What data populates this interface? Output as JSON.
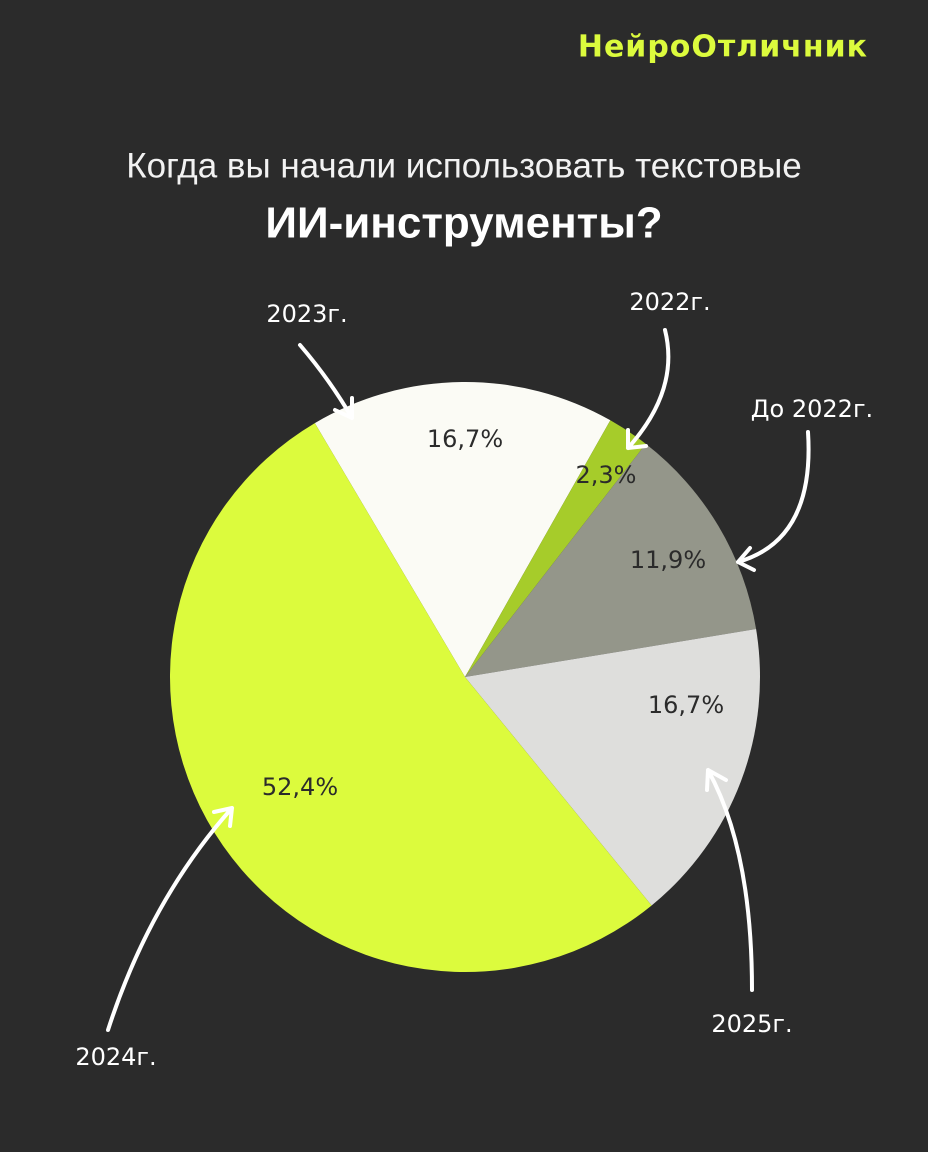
{
  "brand": "НейроОтличник",
  "chart_data": {
    "type": "pie",
    "title_lines": [
      "Когда вы начали использовать текстовые",
      "ИИ-инструменты?"
    ],
    "categories": [
      "2023г.",
      "2022г.",
      "До 2022г.",
      "2025г.",
      "2024г."
    ],
    "values": [
      16.7,
      2.3,
      11.9,
      16.7,
      52.4
    ],
    "value_labels": [
      "16,7%",
      "2,3%",
      "11,9%",
      "16,7%",
      "52,4%"
    ],
    "colors": [
      "#fbfbf5",
      "#a6cc2a",
      "#94968a",
      "#dededc",
      "#dcfb3d"
    ]
  }
}
